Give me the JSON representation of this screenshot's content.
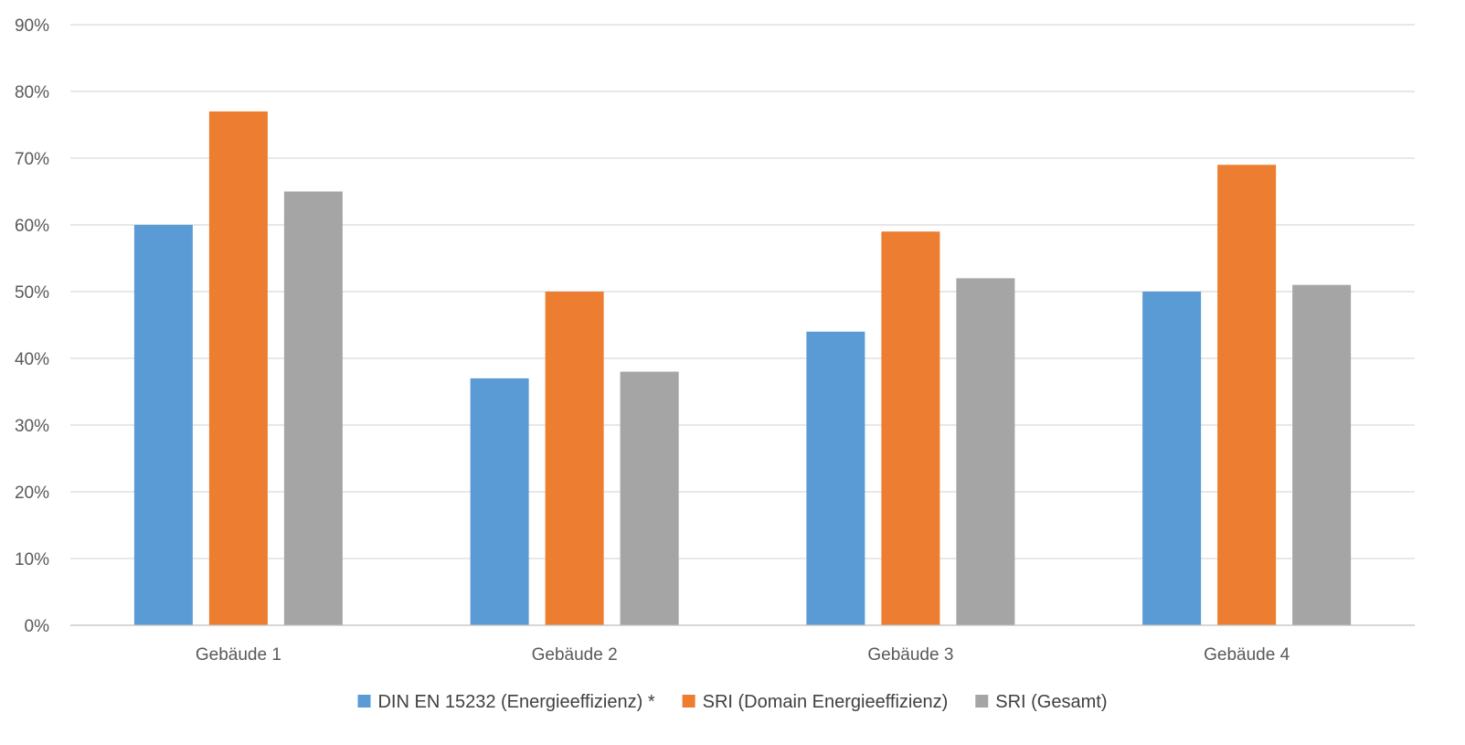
{
  "chart_data": {
    "type": "bar",
    "categories": [
      "Gebäude 1",
      "Gebäude 2",
      "Gebäude 3",
      "Gebäude 4"
    ],
    "series": [
      {
        "name": "DIN EN 15232 (Energieeffizienz) *",
        "color": "#5b9bd5",
        "values": [
          60,
          37,
          44,
          50
        ]
      },
      {
        "name": "SRI (Domain Energieeffizienz)",
        "color": "#ed7d31",
        "values": [
          77,
          50,
          59,
          69
        ]
      },
      {
        "name": "SRI (Gesamt)",
        "color": "#a5a5a5",
        "values": [
          65,
          38,
          52,
          51
        ]
      }
    ],
    "ylim": [
      0,
      90
    ],
    "yticks": [
      "0%",
      "10%",
      "20%",
      "30%",
      "40%",
      "50%",
      "60%",
      "70%",
      "80%",
      "90%"
    ],
    "grid": true,
    "legend": "bottom",
    "title": "",
    "xlabel": "",
    "ylabel": ""
  }
}
